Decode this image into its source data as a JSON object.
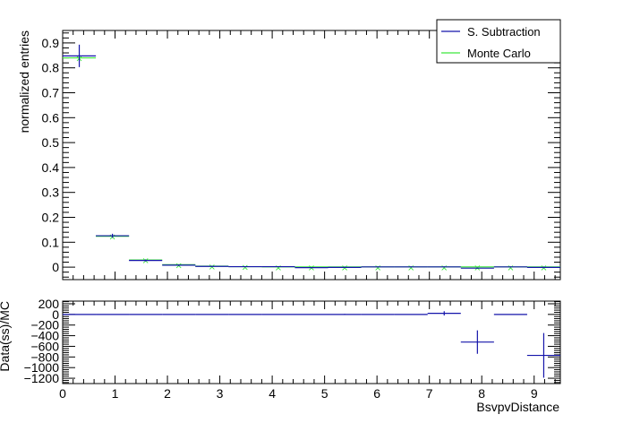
{
  "colors": {
    "data": "#1414aa",
    "mc": "#3ce63c",
    "axis": "#000000"
  },
  "chart_data": [
    {
      "type": "scatter",
      "panel": "top",
      "xlabel": "",
      "ylabel": "normalized entries",
      "xlim": [
        0,
        9.5
      ],
      "ylim": [
        -0.05,
        0.95
      ],
      "yticks": [
        0,
        0.1,
        0.2,
        0.3,
        0.4,
        0.5,
        0.6,
        0.7,
        0.8,
        0.9
      ],
      "ytick_labels": [
        "0",
        "0.1",
        "0.2",
        "0.3",
        "0.4",
        "0.5",
        "0.6",
        "0.7",
        "0.8",
        "0.9"
      ],
      "legend_position": "top-right",
      "series": [
        {
          "name": "S. Subtraction",
          "style": "errorbar",
          "color": "#1414aa",
          "x": [
            0.317,
            0.95,
            1.583,
            2.217,
            2.85,
            3.483,
            4.117,
            4.75,
            5.383,
            6.017,
            6.65,
            7.283,
            7.917,
            8.55,
            9.183
          ],
          "xerr": 0.317,
          "y": [
            0.848,
            0.126,
            0.027,
            0.008,
            0.003,
            0.002,
            0.002,
            -0.002,
            -0.001,
            0.001,
            0.001,
            0.001,
            -0.004,
            0.001,
            -0.001
          ],
          "yerr": [
            0.045,
            0.008,
            0.004,
            0.003,
            0.002,
            0.002,
            0.002,
            0.002,
            0.002,
            0.002,
            0.002,
            0.002,
            0.002,
            0.002,
            0.003
          ]
        },
        {
          "name": "Monte Carlo",
          "style": "step",
          "color": "#3ce63c",
          "x": [
            0.317,
            0.95,
            1.583,
            2.217,
            2.85,
            3.483,
            4.117,
            4.75,
            5.383,
            6.017,
            6.65,
            7.283,
            7.917,
            8.55,
            9.183
          ],
          "xerr": 0.317,
          "y": [
            0.84,
            0.124,
            0.029,
            0.01,
            0.004,
            0.002,
            0.001,
            0.001,
            0.001,
            0.001,
            0.001,
            0.001,
            0.001,
            0.001,
            0.001
          ]
        }
      ]
    },
    {
      "type": "scatter",
      "panel": "bottom",
      "xlabel": "BsvpvDistance",
      "ylabel": "Data(ss)/MC",
      "xlim": [
        0,
        9.5
      ],
      "ylim": [
        -1300,
        250
      ],
      "xticks": [
        0,
        1,
        2,
        3,
        4,
        5,
        6,
        7,
        8,
        9
      ],
      "xtick_labels": [
        "0",
        "1",
        "2",
        "3",
        "4",
        "5",
        "6",
        "7",
        "8",
        "9"
      ],
      "yticks": [
        200,
        0,
        -200,
        -400,
        -600,
        -800,
        -1000,
        -1200
      ],
      "ytick_labels": [
        "200",
        "0",
        "−200",
        "−400",
        "−600",
        "−800",
        "−1000",
        "−1200"
      ],
      "series": [
        {
          "name": "",
          "style": "errorbar",
          "color": "#1414aa",
          "x": [
            0.317,
            0.95,
            1.583,
            2.217,
            2.85,
            3.483,
            4.117,
            4.75,
            5.383,
            6.017,
            6.65,
            7.283,
            7.917,
            8.55,
            9.183
          ],
          "xerr": 0.317,
          "y": [
            0,
            0,
            0,
            0,
            0,
            0,
            0,
            0,
            0,
            0,
            0,
            20,
            -520,
            0,
            -770
          ],
          "yerr": [
            0,
            0,
            0,
            0,
            0,
            0,
            0,
            0,
            10,
            0,
            0,
            40,
            220,
            0,
            420
          ]
        }
      ]
    }
  ],
  "legend": {
    "entries": [
      {
        "label": "S. Subtraction",
        "color": "#1414aa"
      },
      {
        "label": "Monte Carlo",
        "color": "#3ce63c"
      }
    ]
  }
}
